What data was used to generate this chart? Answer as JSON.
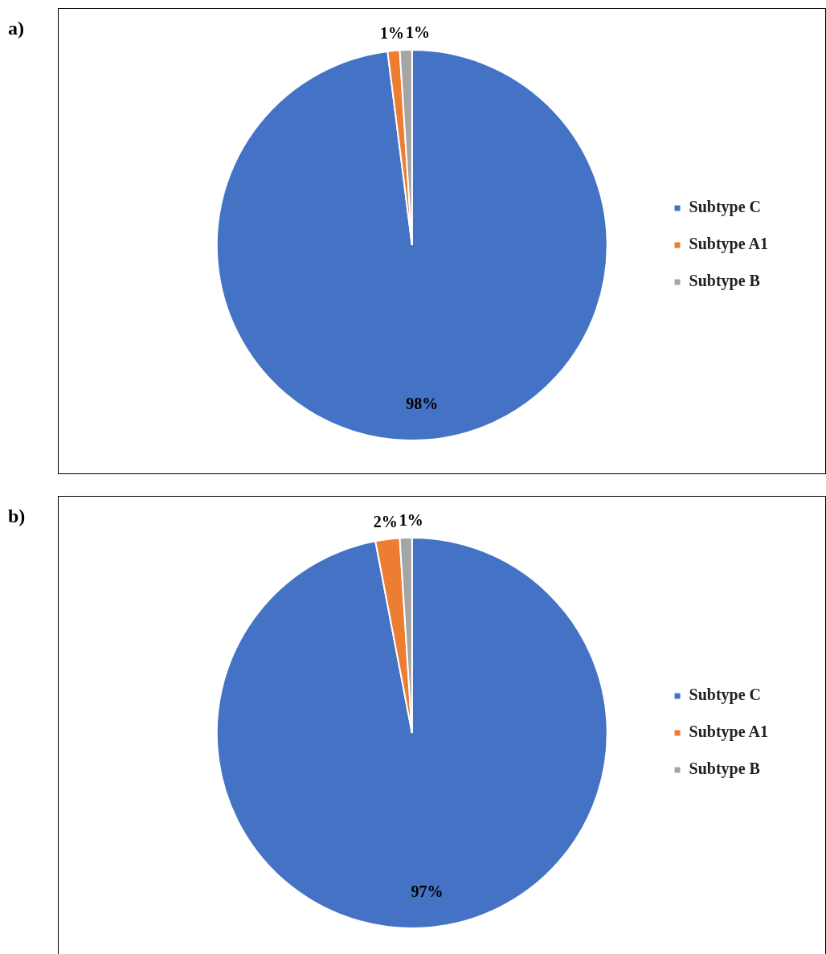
{
  "chart_data": [
    {
      "type": "pie",
      "title": "a)",
      "categories": [
        "Subtype C",
        "Subtype A1",
        "Subtype B"
      ],
      "values": [
        98,
        1,
        1
      ],
      "colors": [
        "#4472c4",
        "#ed7d31",
        "#a5a5a5"
      ],
      "value_labels": [
        "98%",
        "1%",
        "1%"
      ],
      "legend": "right"
    },
    {
      "type": "pie",
      "title": "b)",
      "categories": [
        "Subtype C",
        "Subtype A1",
        "Subtype B"
      ],
      "values": [
        97,
        2,
        1
      ],
      "colors": [
        "#4472c4",
        "#ed7d31",
        "#a5a5a5"
      ],
      "value_labels": [
        "97%",
        "2%",
        "1%"
      ],
      "legend": "right"
    }
  ]
}
